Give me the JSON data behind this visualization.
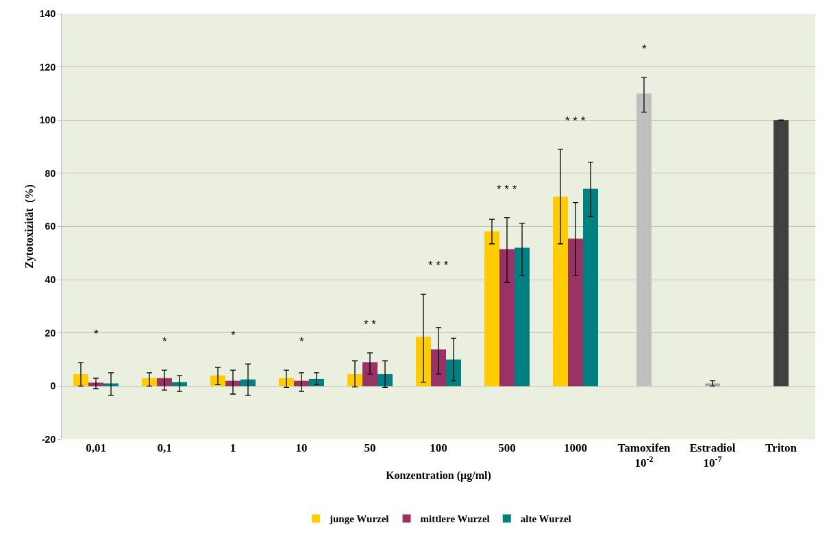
{
  "chart_data": {
    "type": "bar",
    "xlabel": "Konzentration (µg/ml)",
    "ylabel": "Zytotoxizität  (%)",
    "categories": [
      "0,01",
      "0,1",
      "1",
      "10",
      "50",
      "100",
      "500",
      "1000",
      "Tamoxifen\n10$^{-2}$",
      "Estradiol\n10$^{-7}$",
      "Triton"
    ],
    "series": [
      {
        "name": "junge Wurzel",
        "color": "#ffcc00",
        "values": [
          4.5,
          3,
          4,
          3,
          4.5,
          18.5,
          58.2,
          71.2,
          null,
          null,
          null
        ],
        "errors": [
          [
            0,
            8.8
          ],
          [
            0,
            5
          ],
          [
            0.5,
            7
          ],
          [
            -0.5,
            6
          ],
          [
            -0.3,
            9.5
          ],
          [
            1.5,
            34.5
          ],
          [
            53.5,
            62.7
          ],
          [
            53.5,
            89
          ],
          null,
          null,
          null
        ]
      },
      {
        "name": "mittlere Wurzel",
        "color": "#993366",
        "values": [
          1.3,
          3,
          2,
          2,
          9,
          13.8,
          51.5,
          55.4,
          null,
          null,
          null
        ],
        "errors": [
          [
            -1,
            3
          ],
          [
            -1.5,
            6
          ],
          [
            -3,
            6
          ],
          [
            -2,
            5
          ],
          [
            4.5,
            12.5
          ],
          [
            4.5,
            22
          ],
          [
            39,
            63.3
          ],
          [
            41.5,
            69
          ],
          null,
          null,
          null
        ]
      },
      {
        "name": "alte Wurzel",
        "color": "#008080",
        "values": [
          1,
          1.5,
          2.5,
          2.7,
          4.5,
          10,
          52,
          74.2,
          null,
          null,
          null
        ],
        "errors": [
          [
            -3.5,
            5
          ],
          [
            -2,
            4
          ],
          [
            -3.5,
            8.3
          ],
          [
            0.5,
            5
          ],
          [
            -0.5,
            9.5
          ],
          [
            2,
            18
          ],
          [
            41.6,
            61.2
          ],
          [
            63.8,
            84.2
          ],
          null,
          null,
          null
        ]
      },
      {
        "colors": [
          "#bfbfbf",
          "#bfbfbf",
          "#bfbfbf",
          "#bfbfbf",
          "#bfbfbf",
          "#bfbfbf",
          "#bfbfbf",
          "#bfbfbf",
          "#bfbfbf",
          "#a6a6a6",
          "#404040"
        ],
        "values": [
          null,
          null,
          null,
          null,
          null,
          null,
          null,
          null,
          110,
          1,
          100
        ],
        "errors": [
          null,
          null,
          null,
          null,
          null,
          null,
          null,
          null,
          [
            103,
            116
          ],
          [
            0,
            2
          ],
          null
        ]
      }
    ],
    "ylim": [
      -20,
      140
    ],
    "yticks": [
      -20,
      0,
      20,
      40,
      60,
      80,
      100,
      120,
      140
    ],
    "grid": "y",
    "legend": "bottom",
    "annotations": [
      "*",
      "*",
      "*",
      "*",
      "* *",
      "* * *",
      "* * *",
      "* * *",
      "*"
    ]
  }
}
